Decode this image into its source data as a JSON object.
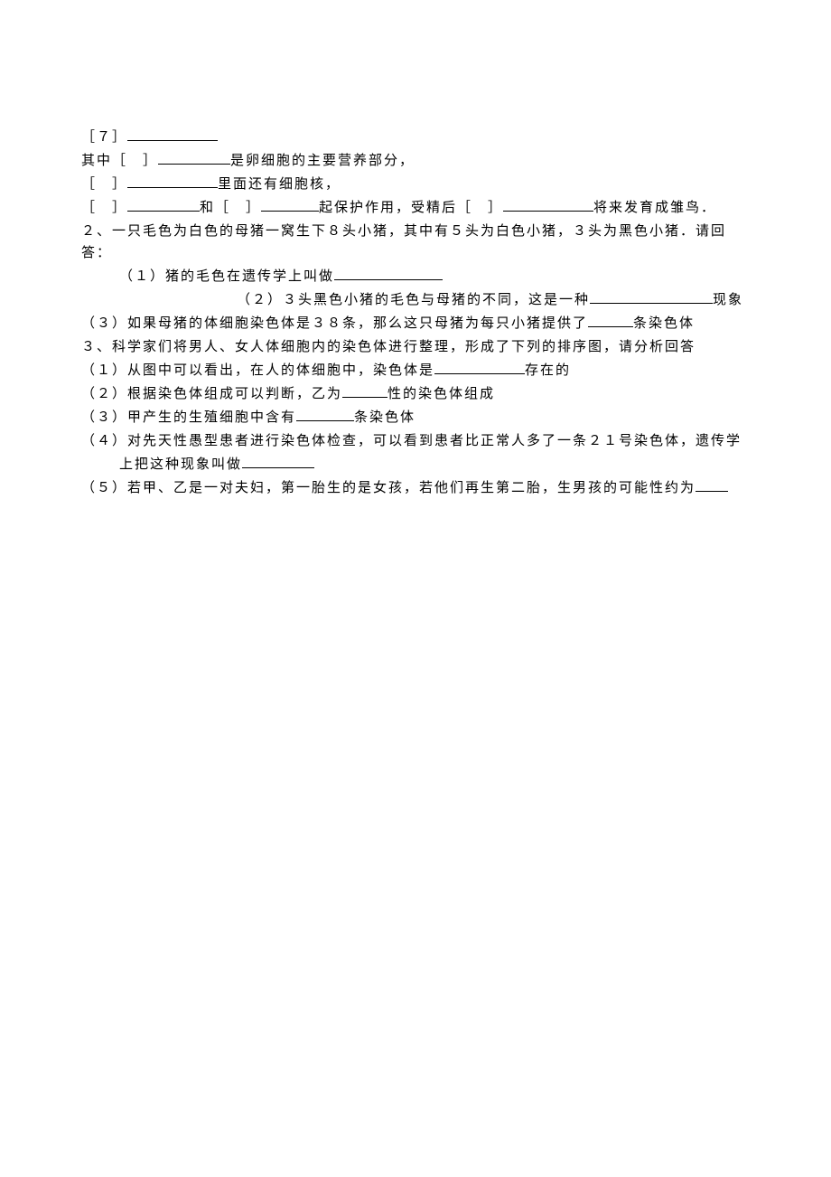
{
  "content": {
    "line1_a": "［７］",
    "line2_a": "其中［　］",
    "line2_b": "是卵细胞的主要营养部分，",
    "line3_a": "［　］",
    "line3_b": "里面还有细胞核，",
    "line4_a": "［　］",
    "line4_b": "和［　］",
    "line4_c": "起保护作用，受精后［　］",
    "line4_d": "将来发育成雏鸟．",
    "line5": "２、一只毛色为白色的母猪一窝生下８头小猪，其中有５头为白色小猪，３头为黑色小猪．请回答：",
    "line6_a": "（１）猪的毛色在遗传学上叫做",
    "line7_a": "（２）３头黑色小猪的毛色与母猪的不同，这是一种",
    "line7_b": "现象",
    "line8_a": "（３）如果母猪的体细胞染色体是３８条，那么这只母猪为每只小猪提供了",
    "line8_b": "条染色体",
    "line9": "３、科学家们将男人、女人体细胞内的染色体进行整理，形成了下列的排序图，请分析回答",
    "line10_a": "（１）从图中可以看出，在人的体细胞中，染色体是",
    "line10_b": "存在的",
    "line11_a": "（２）根据染色体组成可以判断，乙为",
    "line11_b": "性的染色体组成",
    "line12_a": "（３）甲产生的生殖细胞中含有",
    "line12_b": "条染色体",
    "line13_a": "（４）对先天性愚型患者进行染色体检查，可以看到患者比正常人多了一条２１号染色体，遗传学",
    "line13_b": "上把这种现象叫做",
    "line14_a": "（５）若甲、乙是一对夫妇，第一胎生的是女孩，若他们再生第二胎，生男孩的可能性约为"
  },
  "blanks": {
    "b1": 100,
    "b2": 80,
    "b3": 100,
    "b4a": 80,
    "b4b": 64,
    "b4c": 100,
    "b6": 120,
    "b7": 136,
    "b8": 50,
    "b10": 100,
    "b11": 50,
    "b12": 64,
    "b13": 80,
    "b14": 36
  },
  "style": {
    "background_color": "#ffffff",
    "text_color": "#000000",
    "font_size": 15,
    "font_family": "SimSun",
    "line_height": 1.6,
    "letter_spacing": 2
  }
}
